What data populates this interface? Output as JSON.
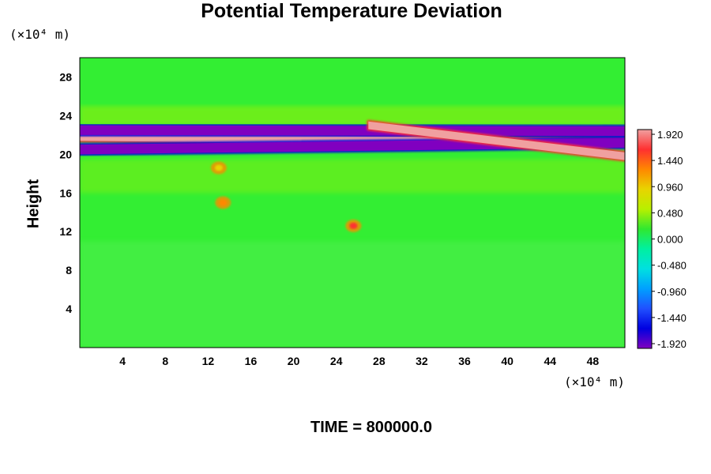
{
  "chart_data": {
    "type": "heatmap",
    "title": "Potential Temperature Deviation",
    "ylabel": "Height",
    "y_unit_label": "(×10⁴ m)",
    "x_unit_label": "(×10⁴ m)",
    "bottom_label": "TIME = 800000.0",
    "xlim": [
      0,
      51
    ],
    "ylim": [
      0,
      30
    ],
    "x_ticks": [
      4,
      8,
      12,
      16,
      20,
      24,
      28,
      32,
      36,
      40,
      44,
      48
    ],
    "y_ticks": [
      4,
      8,
      12,
      16,
      20,
      24,
      28
    ],
    "colorbar": {
      "ticks": [
        "1.920",
        "1.440",
        "0.960",
        "0.480",
        "0.000",
        "-0.480",
        "-0.960",
        "-1.440",
        "-1.920"
      ],
      "range": [
        -1.92,
        1.92
      ],
      "colors_top_to_bottom": [
        "#f0a0a0",
        "#ff3030",
        "#ff8800",
        "#e8d400",
        "#b8f000",
        "#30e830",
        "#00f0a0",
        "#00e0e0",
        "#00a0ff",
        "#2050ff",
        "#0000e0",
        "#8000c0"
      ]
    },
    "background_color": "#33ee33",
    "features": [
      {
        "kind": "positive_band",
        "x_start": 0,
        "x_end": 51,
        "y_start": 21.8,
        "y_end": 21.2,
        "value": 1.92
      },
      {
        "kind": "negative_band",
        "x_start": 0,
        "x_end": 51,
        "y_start": 20.5,
        "y_end": 21.2,
        "value": -1.92
      },
      {
        "kind": "negative_band",
        "x_start": 0,
        "x_end": 51,
        "y_start": 22.5,
        "y_end": 22.4,
        "value": -1.92
      },
      {
        "kind": "positive_band",
        "x_start": 27,
        "x_end": 51,
        "y_start": 23.0,
        "y_end": 19.8,
        "value": 1.92
      },
      {
        "kind": "hot_spot",
        "x": 25.6,
        "y": 12.6,
        "value": 1.44
      },
      {
        "kind": "hot_spot",
        "x": 13.4,
        "y": 15.0,
        "value": 1.2
      },
      {
        "kind": "hot_spot",
        "x": 13.0,
        "y": 18.6,
        "value": 1.0
      }
    ]
  }
}
